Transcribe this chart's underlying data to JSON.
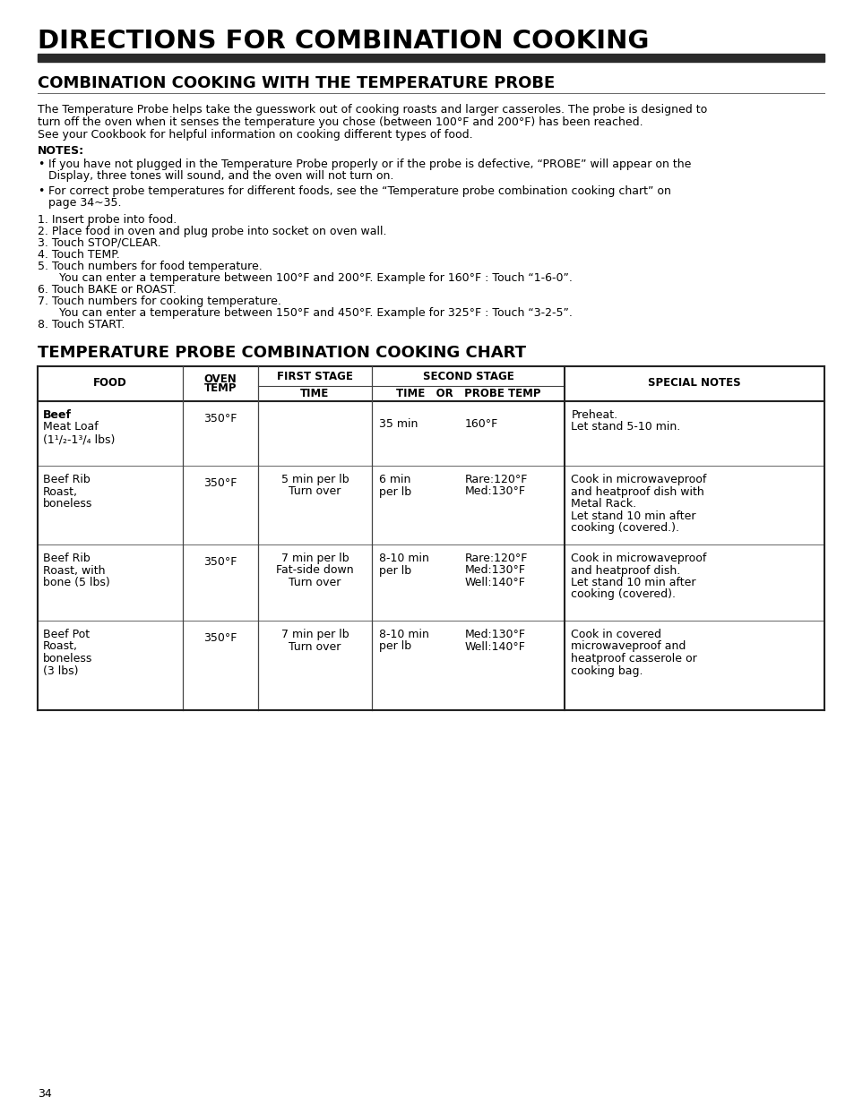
{
  "main_title": "DIRECTIONS FOR COMBINATION COOKING",
  "section1_title": "COMBINATION COOKING WITH THE TEMPERATURE PROBE",
  "intro_lines": [
    "The Temperature Probe helps take the guesswork out of cooking roasts and larger casseroles. The probe is designed to",
    "turn off the oven when it senses the temperature you chose (between 100°F and 200°F) has been reached.",
    "See your Cookbook for helpful information on cooking different types of food."
  ],
  "notes_title": "NOTES:",
  "note1_lines": [
    "If you have not plugged in the Temperature Probe properly or if the probe is defective, “PROBE” will appear on the",
    "Display, three tones will sound, and the oven will not turn on."
  ],
  "note2_lines": [
    "For correct probe temperatures for different foods, see the “Temperature probe combination cooking chart” on",
    "page 34~35."
  ],
  "steps": [
    "1. Insert probe into food.",
    "2. Place food in oven and plug probe into socket on oven wall.",
    "3. Touch STOP/CLEAR.",
    "4. Touch TEMP.",
    "5. Touch numbers for food temperature.",
    "      You can enter a temperature between 100°F and 200°F. Example for 160°F : Touch “1-6-0”.",
    "6. Touch BAKE or ROAST.",
    "7. Touch numbers for cooking temperature.",
    "      You can enter a temperature between 150°F and 450°F. Example for 325°F : Touch “3-2-5”.",
    "8. Touch START."
  ],
  "section2_title": "TEMPERATURE PROBE COMBINATION COOKING CHART",
  "table_rows": [
    {
      "food": [
        "Beef",
        "Meat Loaf",
        "(1¹/₂-1³/₄ lbs)"
      ],
      "food_bold_first": true,
      "oven_temp": "350°F",
      "first_time": [],
      "second_time": [
        "35 min"
      ],
      "second_probe": [
        "160°F"
      ],
      "notes": [
        "Preheat.",
        "Let stand 5-10 min."
      ]
    },
    {
      "food": [
        "Beef Rib",
        "Roast,",
        "boneless"
      ],
      "food_bold_first": false,
      "oven_temp": "350°F",
      "first_time": [
        "5 min per lb",
        "Turn over"
      ],
      "second_time": [
        "6 min",
        "per lb"
      ],
      "second_probe": [
        "Rare:120°F",
        "Med:130°F"
      ],
      "notes": [
        "Cook in microwaveproof",
        "and heatproof dish with",
        "Metal Rack.",
        "Let stand 10 min after",
        "cooking (covered.)."
      ]
    },
    {
      "food": [
        "Beef Rib",
        "Roast, with",
        "bone (5 lbs)"
      ],
      "food_bold_first": false,
      "oven_temp": "350°F",
      "first_time": [
        "7 min per lb",
        "Fat-side down",
        "Turn over"
      ],
      "second_time": [
        "8-10 min",
        "per lb"
      ],
      "second_probe": [
        "Rare:120°F",
        "Med:130°F",
        "Well:140°F"
      ],
      "notes": [
        "Cook in microwaveproof",
        "and heatproof dish.",
        "Let stand 10 min after",
        "cooking (covered)."
      ]
    },
    {
      "food": [
        "Beef Pot",
        "Roast,",
        "boneless",
        "(3 lbs)"
      ],
      "food_bold_first": false,
      "oven_temp": "350°F",
      "first_time": [
        "7 min per lb",
        "Turn over"
      ],
      "second_time": [
        "8-10 min",
        "per lb"
      ],
      "second_probe": [
        "Med:130°F",
        "Well:140°F"
      ],
      "notes": [
        "Cook in covered",
        "microwaveproof and",
        "heatproof casserole or",
        "cooking bag."
      ]
    }
  ],
  "page_number": "34",
  "bg_color": "#ffffff"
}
